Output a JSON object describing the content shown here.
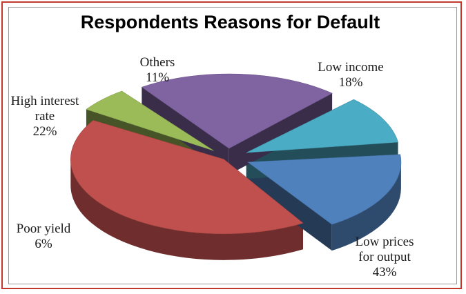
{
  "chart_data": {
    "type": "pie",
    "title": "Respondents Reasons for Default",
    "slices": [
      {
        "label": "Low income",
        "value": 18,
        "display": "18%",
        "color": "#4f81bd",
        "label_lines": [
          "Low income"
        ]
      },
      {
        "label": "Low prices for output",
        "value": 43,
        "display": "43%",
        "color": "#c0504d",
        "label_lines": [
          "Low prices",
          "for output"
        ]
      },
      {
        "label": "Poor yield",
        "value": 6,
        "display": "6%",
        "color": "#9bbb59",
        "label_lines": [
          "Poor yield"
        ]
      },
      {
        "label": "High interest rate",
        "value": 22,
        "display": "22%",
        "color": "#8064a2",
        "label_lines": [
          "High interest",
          "rate"
        ]
      },
      {
        "label": "Others",
        "value": 11,
        "display": "11%",
        "color": "#4bacc6",
        "label_lines": [
          "Others"
        ]
      }
    ],
    "legend": "none",
    "data_labels": "outside"
  }
}
